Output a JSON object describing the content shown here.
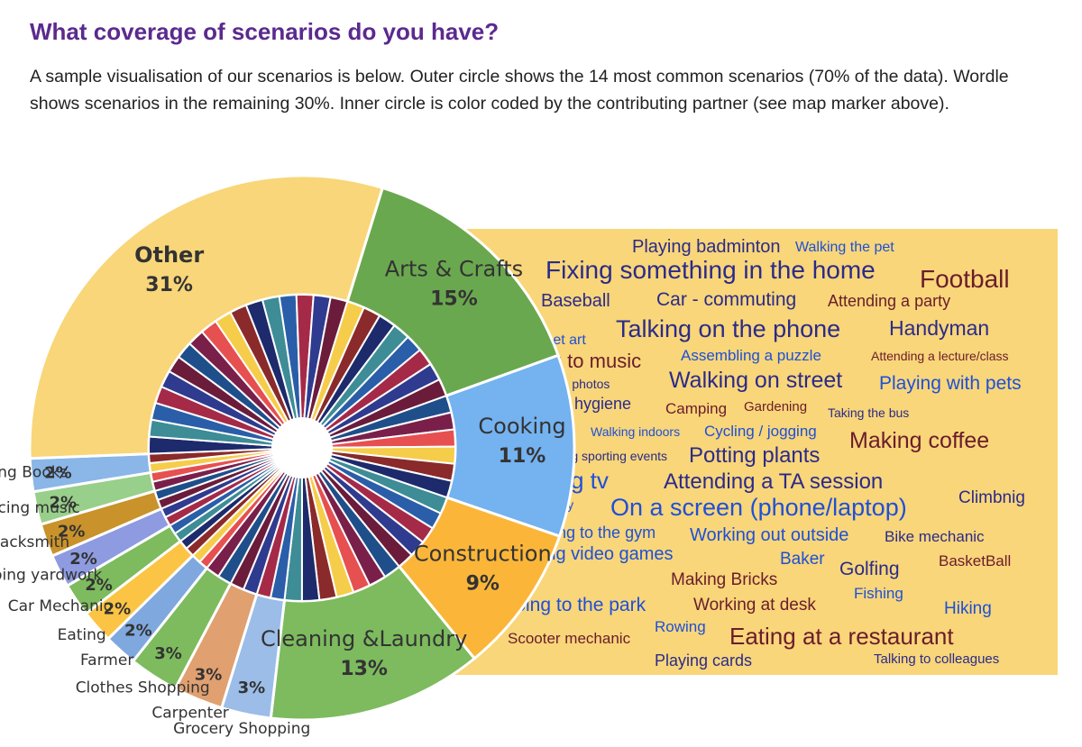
{
  "page": {
    "heading": "What coverage of scenarios do you have?",
    "description": "A sample visualisation of our scenarios is below. Outer circle shows the 14 most common scenarios (70% of the data). Wordle shows scenarios in the remaining 30%. Inner circle is color coded by the contributing partner (see map marker above)."
  },
  "colors": {
    "heading": "#5b2a8e",
    "wordle_bg": "#f8d679",
    "wordle_navy": "#2c2a8a",
    "wordle_blue": "#1f4fd8",
    "wordle_maroon": "#6b1c2c"
  },
  "chart_data": {
    "type": "pie",
    "subtype": "sunburst",
    "outer_ring": [
      {
        "label": "Arts & Crafts",
        "pct_label": "15%",
        "value": 15,
        "color": "#6aa84f"
      },
      {
        "label": "Cooking",
        "pct_label": "11%",
        "value": 11,
        "color": "#74b2f0"
      },
      {
        "label": "Construction",
        "pct_label": "9%",
        "value": 9,
        "color": "#fbb63a"
      },
      {
        "label": "Cleaning &Laundry",
        "pct_label": "13%",
        "value": 13,
        "color": "#7dbb5e"
      },
      {
        "label": "Grocery Shopping",
        "pct_label": "3%",
        "value": 3,
        "color": "#9bbde8"
      },
      {
        "label": "Carpenter",
        "pct_label": "3%",
        "value": 3,
        "color": "#e0a070"
      },
      {
        "label": "Clothes Shopping",
        "pct_label": "3%",
        "value": 3,
        "color": "#7dbb5e"
      },
      {
        "label": "Farmer",
        "pct_label": "2%",
        "value": 2,
        "color": "#7fa8df"
      },
      {
        "label": "Eating",
        "pct_label": "2%",
        "value": 2,
        "color": "#fbc444"
      },
      {
        "label": "Car Mechanic",
        "pct_label": "2%",
        "value": 2,
        "color": "#7dbb5e"
      },
      {
        "label": "Doing yardwork",
        "pct_label": "2%",
        "value": 2,
        "color": "#8e9be0"
      },
      {
        "label": "Blacksmith",
        "pct_label": "2%",
        "value": 2,
        "color": "#c9922a"
      },
      {
        "label": "Practicing music",
        "pct_label": "2%",
        "value": 2,
        "color": "#98cf8a"
      },
      {
        "label": "Reading Books",
        "pct_label": "2%",
        "value": 2,
        "color": "#8ab6e8"
      },
      {
        "label": "Other",
        "pct_label": "31%",
        "value": 31,
        "color": "#f8d679"
      }
    ],
    "inner_ring_colors": [
      "#7a1f4a",
      "#2e3b8f",
      "#3d8c96",
      "#f5cd4a",
      "#1f4f8a",
      "#a52a48",
      "#1d2a6b",
      "#e65050",
      "#6b1c3a",
      "#2a5ea8",
      "#8a2a2a"
    ],
    "wordle": [
      {
        "text": "Playing badminton",
        "size": 20,
        "color": "navy"
      },
      {
        "text": "Walking the pet",
        "size": 16,
        "color": "blue"
      },
      {
        "text": "Fixing something in the home",
        "size": 28,
        "color": "navy"
      },
      {
        "text": "Football",
        "size": 28,
        "color": "maroon"
      },
      {
        "text": "Baseball",
        "size": 20,
        "color": "navy"
      },
      {
        "text": "Car - commuting",
        "size": 21,
        "color": "navy"
      },
      {
        "text": "Attending a party",
        "size": 18,
        "color": "maroon"
      },
      {
        "text": "Street art",
        "size": 16,
        "color": "blue"
      },
      {
        "text": "Talking on the phone",
        "size": 27,
        "color": "navy"
      },
      {
        "text": "Handyman",
        "size": 23,
        "color": "navy"
      },
      {
        "text": "Listening to music",
        "size": 22,
        "color": "maroon"
      },
      {
        "text": "Assembling a puzzle",
        "size": 17,
        "color": "blue"
      },
      {
        "text": "Attending a lecture/class",
        "size": 14,
        "color": "maroon"
      },
      {
        "text": "Taking photos",
        "size": 14,
        "color": "navy"
      },
      {
        "text": "Walking on street",
        "size": 25,
        "color": "navy"
      },
      {
        "text": "Playing with pets",
        "size": 21,
        "color": "blue"
      },
      {
        "text": "Daily hygiene",
        "size": 18,
        "color": "navy"
      },
      {
        "text": "Camping",
        "size": 17,
        "color": "maroon"
      },
      {
        "text": "Gardening",
        "size": 15,
        "color": "maroon"
      },
      {
        "text": "Taking the bus",
        "size": 14,
        "color": "navy"
      },
      {
        "text": "Walking indoors",
        "size": 14,
        "color": "blue"
      },
      {
        "text": "Cycling / jogging",
        "size": 17,
        "color": "blue"
      },
      {
        "text": "Making coffee",
        "size": 25,
        "color": "maroon"
      },
      {
        "text": "Attending sporting events",
        "size": 14,
        "color": "navy"
      },
      {
        "text": "Potting plants",
        "size": 24,
        "color": "navy"
      },
      {
        "text": "Watching tv",
        "size": 26,
        "color": "blue"
      },
      {
        "text": "Attending a TA session",
        "size": 24,
        "color": "navy"
      },
      {
        "text": "Hosting a party",
        "size": 14,
        "color": "blue"
      },
      {
        "text": "On a screen (phone/laptop)",
        "size": 27,
        "color": "blue"
      },
      {
        "text": "Climbnig",
        "size": 19,
        "color": "navy"
      },
      {
        "text": "Going to the gym",
        "size": 18,
        "color": "blue"
      },
      {
        "text": "Working out outside",
        "size": 20,
        "color": "blue"
      },
      {
        "text": "Bike mechanic",
        "size": 17,
        "color": "navy"
      },
      {
        "text": "Playing video games",
        "size": 20,
        "color": "blue"
      },
      {
        "text": "Baker",
        "size": 19,
        "color": "blue"
      },
      {
        "text": "Golfing",
        "size": 21,
        "color": "navy"
      },
      {
        "text": "BasketBall",
        "size": 17,
        "color": "maroon"
      },
      {
        "text": "Making Bricks",
        "size": 19,
        "color": "maroon"
      },
      {
        "text": "Fishing",
        "size": 17,
        "color": "blue"
      },
      {
        "text": "Going to the park",
        "size": 21,
        "color": "blue"
      },
      {
        "text": "Working at desk",
        "size": 19,
        "color": "maroon"
      },
      {
        "text": "Hiking",
        "size": 19,
        "color": "blue"
      },
      {
        "text": "Rowing",
        "size": 17,
        "color": "blue"
      },
      {
        "text": "Scooter mechanic",
        "size": 17,
        "color": "maroon"
      },
      {
        "text": "Eating at a restaurant",
        "size": 26,
        "color": "maroon"
      },
      {
        "text": "Playing cards",
        "size": 18,
        "color": "navy"
      },
      {
        "text": "Talking to colleagues",
        "size": 15,
        "color": "navy"
      }
    ]
  }
}
